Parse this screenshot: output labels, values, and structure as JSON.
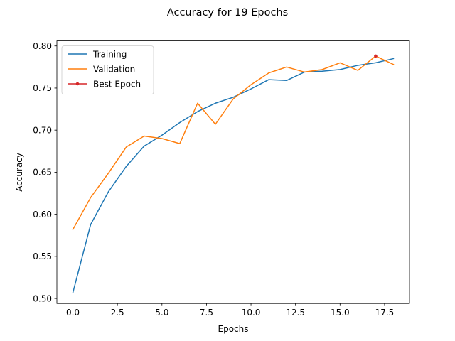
{
  "chart_data": {
    "type": "line",
    "title": "Accuracy for 19 Epochs",
    "xlabel": "Epochs",
    "ylabel": "Accuracy",
    "xlim": [
      -0.9,
      18.9
    ],
    "ylim": [
      0.494,
      0.806
    ],
    "xticks": [
      0.0,
      2.5,
      5.0,
      7.5,
      10.0,
      12.5,
      15.0,
      17.5
    ],
    "xtick_labels": [
      "0.0",
      "2.5",
      "5.0",
      "7.5",
      "10.0",
      "12.5",
      "15.0",
      "17.5"
    ],
    "yticks": [
      0.5,
      0.55,
      0.6,
      0.65,
      0.7,
      0.75,
      0.8
    ],
    "ytick_labels": [
      "0.50",
      "0.55",
      "0.60",
      "0.65",
      "0.70",
      "0.75",
      "0.80"
    ],
    "grid": false,
    "legend_position": "top-left",
    "x": [
      0,
      1,
      2,
      3,
      4,
      5,
      6,
      7,
      8,
      9,
      10,
      11,
      12,
      13,
      14,
      15,
      16,
      17,
      18
    ],
    "series": [
      {
        "name": "Training",
        "color": "#1f77b4",
        "values": [
          0.507,
          0.588,
          0.627,
          0.657,
          0.681,
          0.694,
          0.709,
          0.722,
          0.732,
          0.739,
          0.749,
          0.76,
          0.759,
          0.769,
          0.77,
          0.772,
          0.777,
          0.78,
          0.785
        ]
      },
      {
        "name": "Validation",
        "color": "#ff7f0e",
        "values": [
          0.582,
          0.62,
          0.649,
          0.68,
          0.693,
          0.69,
          0.684,
          0.732,
          0.707,
          0.737,
          0.754,
          0.768,
          0.775,
          0.769,
          0.772,
          0.78,
          0.771,
          0.788,
          0.778
        ]
      }
    ],
    "best_epoch": {
      "name": "Best Epoch",
      "color": "#d62728",
      "x": 17,
      "y": 0.788
    }
  }
}
